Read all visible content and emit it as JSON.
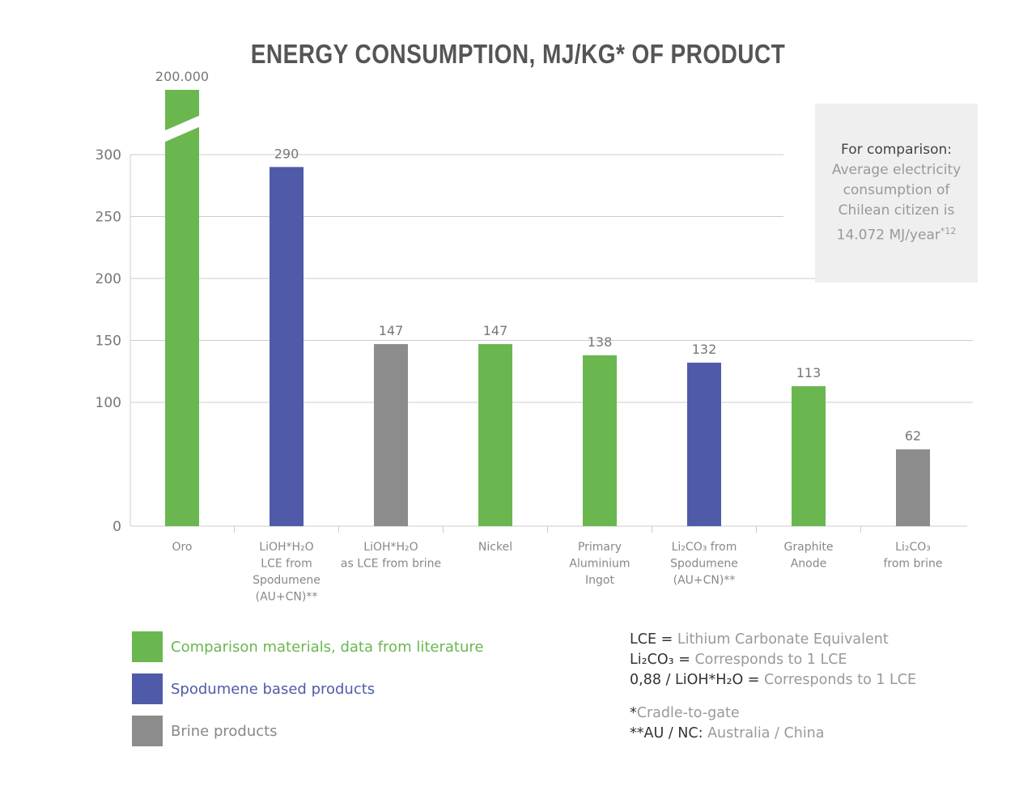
{
  "chart_data": {
    "type": "bar",
    "title": "ENERGY CONSUMPTION, MJ/KG* OF PRODUCT",
    "ylim": [
      0,
      300
    ],
    "yticks": [
      "0",
      "100",
      "150",
      "200",
      "250",
      "300"
    ],
    "grid": true,
    "categories": [
      [
        "Oro"
      ],
      [
        "LiOH*H₂O",
        "LCE from",
        "Spodumene",
        "(AU+CN)**"
      ],
      [
        "LiOH*H₂O",
        "as LCE from brine"
      ],
      [
        "Nickel"
      ],
      [
        "Primary",
        "Aluminium",
        "Ingot"
      ],
      [
        "Li₂CO₃ from",
        "Spodumene",
        "(AU+CN)**"
      ],
      [
        "Graphite",
        "Anode"
      ],
      [
        "Li₂CO₃",
        "from brine"
      ]
    ],
    "values": [
      200000,
      290,
      147,
      147,
      138,
      132,
      113,
      62
    ],
    "data_labels": [
      "200.000",
      "290",
      "147",
      "147",
      "138",
      "132",
      "113",
      "62"
    ],
    "groups": [
      "comparison",
      "spodumene",
      "brine",
      "comparison",
      "comparison",
      "spodumene",
      "comparison",
      "brine"
    ],
    "axis_break_on": "Oro",
    "legend_placement": "bottom-left",
    "legend": [
      {
        "key": "comparison",
        "label": "Comparison materials, data from literature",
        "color": "#6ab750"
      },
      {
        "key": "spodumene",
        "label": "Spodumene based products",
        "color": "#4f5ba8"
      },
      {
        "key": "brine",
        "label": "Brine products",
        "color": "#8c8c8c"
      }
    ]
  },
  "note": {
    "heading": "For comparison:",
    "lines": [
      "Average electricity",
      "consumption of",
      "Chilean citizen is"
    ],
    "value": "14.072 MJ/year",
    "sup": "*12"
  },
  "definitions": [
    {
      "key": "LCE = ",
      "text": "Lithium Carbonate Equivalent"
    },
    {
      "key": "Li₂CO₃ = ",
      "text": "Corresponds to 1 LCE"
    },
    {
      "key": "0,88 / LiOH*H₂O = ",
      "text": "Corresponds to 1 LCE"
    }
  ],
  "footnotes": [
    {
      "key": "*",
      "text": "Cradle-to-gate"
    },
    {
      "key": "**AU / NC: ",
      "text": "Australia / China"
    }
  ]
}
